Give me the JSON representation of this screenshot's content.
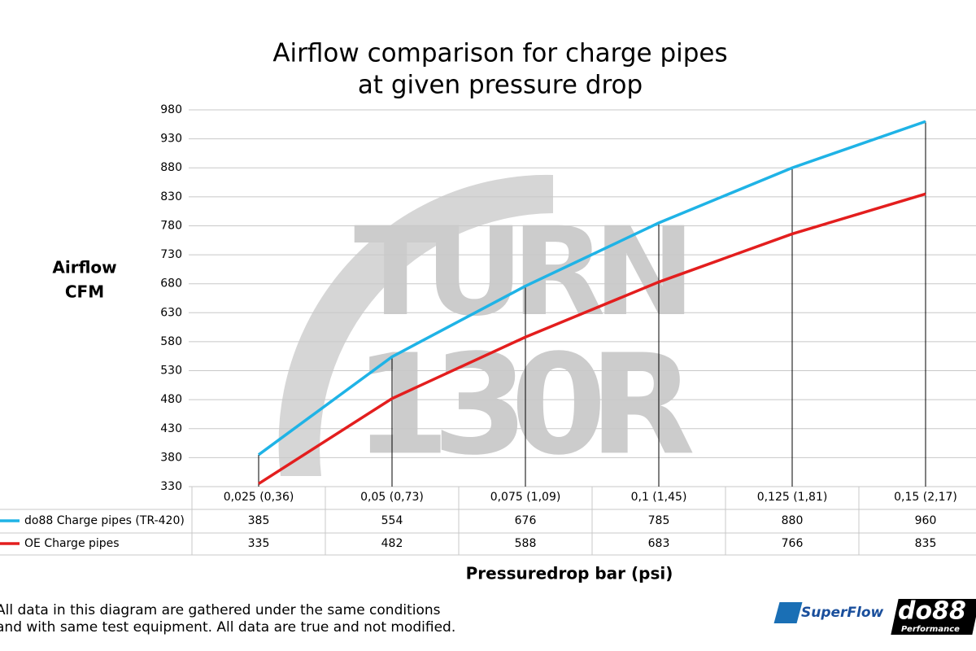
{
  "chart_data": {
    "type": "line",
    "title_lines": [
      "Airflow comparison for charge pipes",
      "at given pressure drop"
    ],
    "y_label_lines": [
      "Airflow",
      "CFM"
    ],
    "x_label": "Pressuredrop bar (psi)",
    "categories": [
      "0,025 (0,36)",
      "0,05 (0,73)",
      "0,075 (1,09)",
      "0,1 (1,45)",
      "0,125 (1,81)",
      "0,15 (2,17)"
    ],
    "series": [
      {
        "name": "do88 Charge pipes (TR-420)",
        "color": "#1fb3e6",
        "values": [
          385,
          554,
          676,
          785,
          880,
          960
        ]
      },
      {
        "name": "OE Charge pipes",
        "color": "#e31e1e",
        "values": [
          335,
          482,
          588,
          683,
          766,
          835
        ]
      }
    ],
    "ylim": [
      330,
      980
    ],
    "yticks": [
      330,
      380,
      430,
      480,
      530,
      580,
      630,
      680,
      730,
      780,
      830,
      880,
      930,
      980
    ],
    "grid": true,
    "watermark": [
      "TURN",
      "130R"
    ],
    "footnote_lines": [
      "All data in this diagram are gathered under the same conditions",
      "and with same test equipment. All data are true and not modified."
    ],
    "logos": [
      "SuperFlow",
      "do88",
      "Performance"
    ]
  }
}
